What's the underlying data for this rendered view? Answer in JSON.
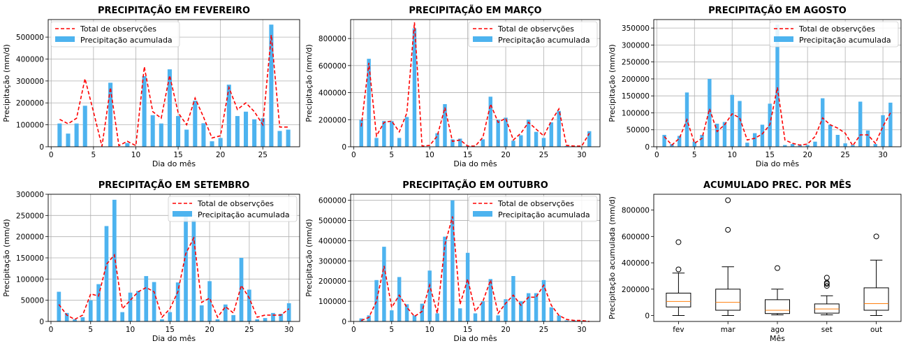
{
  "colors": {
    "bar": "#4db3ef",
    "line": "#ff0000",
    "grid": "#b0b0b0",
    "median": "#ff7f0e"
  },
  "chart_data": [
    {
      "type": "bar",
      "title": "PRECIPITAÇÃO EM FEVEREIRO",
      "xlabel": "Dia do mês",
      "ylabel": "Precipitação (mm/d)",
      "xlim": [
        -0.35,
        29.35
      ],
      "ylim": [
        0,
        580000
      ],
      "xticks": [
        0,
        5,
        10,
        15,
        20,
        25
      ],
      "yticks": [
        0,
        100000,
        200000,
        300000,
        400000,
        500000
      ],
      "legend": "upper left",
      "series": [
        {
          "name": "Precipitação acumulada",
          "kind": "bar",
          "x": [
            1,
            2,
            3,
            4,
            5,
            6,
            7,
            8,
            9,
            10,
            11,
            12,
            13,
            14,
            15,
            16,
            17,
            18,
            19,
            20,
            21,
            22,
            23,
            24,
            25,
            26,
            27,
            28
          ],
          "values": [
            106000,
            60000,
            106000,
            187000,
            0,
            0,
            292000,
            0,
            17000,
            0,
            322000,
            144000,
            106000,
            353000,
            140000,
            78000,
            210000,
            107000,
            25000,
            40000,
            283000,
            140000,
            160000,
            125000,
            130000,
            557000,
            72000,
            78000
          ]
        },
        {
          "name": "Total de observções",
          "kind": "line",
          "x": [
            1,
            2,
            3,
            4,
            5,
            6,
            7,
            8,
            9,
            10,
            11,
            12,
            13,
            14,
            15,
            16,
            17,
            18,
            19,
            20,
            21,
            22,
            23,
            24,
            25,
            26,
            27,
            28
          ],
          "values": [
            125000,
            105000,
            130000,
            310000,
            160000,
            2000,
            270000,
            5000,
            25000,
            5000,
            365000,
            160000,
            130000,
            325000,
            155000,
            100000,
            222000,
            135000,
            40000,
            50000,
            270000,
            170000,
            200000,
            160000,
            100000,
            510000,
            90000,
            90000
          ]
        }
      ]
    },
    {
      "type": "bar",
      "title": "PRECIPITAÇÃO EM MARÇO",
      "xlabel": "Dia do mês",
      "ylabel": "Precipitação (mm/d)",
      "xlim": [
        -0.4,
        32.4
      ],
      "ylim": [
        0,
        940000
      ],
      "xticks": [
        0,
        5,
        10,
        15,
        20,
        25,
        30
      ],
      "yticks": [
        0,
        200000,
        400000,
        600000,
        800000
      ],
      "legend": "upper right",
      "series": [
        {
          "name": "Precipitação acumulada",
          "kind": "bar",
          "x": [
            1,
            2,
            3,
            4,
            5,
            6,
            7,
            8,
            9,
            10,
            11,
            12,
            13,
            14,
            15,
            16,
            17,
            18,
            19,
            20,
            21,
            22,
            23,
            24,
            25,
            26,
            27,
            28,
            29,
            30,
            31
          ],
          "values": [
            200000,
            650000,
            65000,
            190000,
            190000,
            65000,
            220000,
            875000,
            0,
            0,
            100000,
            315000,
            55000,
            60000,
            5000,
            0,
            55000,
            370000,
            200000,
            215000,
            45000,
            85000,
            200000,
            110000,
            65000,
            180000,
            265000,
            5000,
            0,
            0,
            115000
          ]
        },
        {
          "name": "Total de observções",
          "kind": "line",
          "x": [
            1,
            2,
            3,
            4,
            5,
            6,
            7,
            8,
            9,
            10,
            11,
            12,
            13,
            14,
            15,
            16,
            17,
            18,
            19,
            20,
            21,
            22,
            23,
            24,
            25,
            26,
            27,
            28,
            29,
            30,
            31
          ],
          "values": [
            150000,
            620000,
            80000,
            180000,
            190000,
            110000,
            250000,
            920000,
            5000,
            10000,
            80000,
            290000,
            40000,
            50000,
            5000,
            5000,
            70000,
            315000,
            180000,
            210000,
            50000,
            100000,
            180000,
            130000,
            80000,
            190000,
            280000,
            10000,
            5000,
            5000,
            100000
          ]
        }
      ]
    },
    {
      "type": "bar",
      "title": "PRECIPITAÇÃO EM AGOSTO",
      "xlabel": "Dia do mês",
      "ylabel": "Precipitação (mm/d)",
      "xlim": [
        -0.4,
        32.4
      ],
      "ylim": [
        0,
        375000
      ],
      "xticks": [
        0,
        5,
        10,
        15,
        20,
        25,
        30
      ],
      "yticks": [
        0,
        50000,
        100000,
        150000,
        200000,
        250000,
        300000,
        350000
      ],
      "legend": "upper right",
      "series": [
        {
          "name": "Precipitação acumulada",
          "kind": "bar",
          "x": [
            1,
            2,
            3,
            4,
            5,
            6,
            7,
            8,
            9,
            10,
            11,
            12,
            13,
            14,
            15,
            16,
            17,
            18,
            19,
            20,
            21,
            22,
            23,
            24,
            25,
            26,
            27,
            28,
            29,
            30,
            31
          ],
          "values": [
            35000,
            8000,
            32000,
            160000,
            15000,
            35000,
            200000,
            68000,
            73000,
            153000,
            135000,
            12000,
            40000,
            65000,
            127000,
            360000,
            5000,
            8000,
            5000,
            5000,
            15000,
            143000,
            65000,
            35000,
            10000,
            5000,
            133000,
            48000,
            8000,
            93000,
            130000
          ]
        },
        {
          "name": "Total de observções",
          "kind": "line",
          "x": [
            1,
            2,
            3,
            4,
            5,
            6,
            7,
            8,
            9,
            10,
            11,
            12,
            13,
            14,
            15,
            16,
            17,
            18,
            19,
            20,
            21,
            22,
            23,
            24,
            25,
            26,
            27,
            28,
            29,
            30,
            31
          ],
          "values": [
            30000,
            5000,
            25000,
            80000,
            10000,
            25000,
            112000,
            45000,
            65000,
            97000,
            85000,
            20000,
            25000,
            38000,
            65000,
            175000,
            20000,
            10000,
            5000,
            8000,
            30000,
            85000,
            65000,
            55000,
            40000,
            3000,
            35000,
            35000,
            10000,
            60000,
            100000
          ]
        }
      ]
    },
    {
      "type": "bar",
      "title": "PRECIPITAÇÃO EM SETEMBRO",
      "xlabel": "Dia do mês",
      "ylabel": "Precipitação (mm/d)",
      "xlim": [
        -0.35,
        31.35
      ],
      "ylim": [
        0,
        300000
      ],
      "xticks": [
        0,
        5,
        10,
        15,
        20,
        25,
        30
      ],
      "yticks": [
        0,
        50000,
        100000,
        150000,
        200000,
        250000,
        300000
      ],
      "legend": "upper right",
      "series": [
        {
          "name": "Precipitação acumulada",
          "kind": "bar",
          "x": [
            1,
            2,
            3,
            4,
            5,
            6,
            7,
            8,
            9,
            10,
            11,
            12,
            13,
            14,
            15,
            16,
            17,
            18,
            19,
            20,
            21,
            22,
            23,
            24,
            25,
            26,
            27,
            28,
            29,
            30
          ],
          "values": [
            70000,
            20000,
            5000,
            10000,
            50000,
            88000,
            225000,
            287000,
            22000,
            68000,
            72000,
            107000,
            93000,
            5000,
            22000,
            92000,
            248000,
            240000,
            38000,
            95000,
            5000,
            40000,
            15000,
            150000,
            75000,
            5000,
            8000,
            20000,
            18000,
            43000
          ]
        },
        {
          "name": "Total de observções",
          "kind": "line",
          "x": [
            1,
            2,
            3,
            4,
            5,
            6,
            7,
            8,
            9,
            10,
            11,
            12,
            13,
            14,
            15,
            16,
            17,
            18,
            19,
            20,
            21,
            22,
            23,
            24,
            25,
            26,
            27,
            28,
            29,
            30
          ],
          "values": [
            40000,
            15000,
            5000,
            15000,
            65000,
            60000,
            135000,
            157000,
            30000,
            50000,
            70000,
            80000,
            70000,
            10000,
            30000,
            70000,
            160000,
            197000,
            45000,
            55000,
            10000,
            35000,
            20000,
            85000,
            55000,
            10000,
            15000,
            15000,
            15000,
            30000
          ]
        }
      ]
    },
    {
      "type": "bar",
      "title": "PRECIPITAÇÃO EM OUTUBRO",
      "xlabel": "Dia do mês",
      "ylabel": "Precipitação (mm/d)",
      "xlim": [
        -0.4,
        32.4
      ],
      "ylim": [
        0,
        630000
      ],
      "xticks": [
        0,
        5,
        10,
        15,
        20,
        25,
        30
      ],
      "yticks": [
        0,
        100000,
        200000,
        300000,
        400000,
        500000,
        600000
      ],
      "legend": "upper right",
      "series": [
        {
          "name": "Precipitação acumulada",
          "kind": "bar",
          "x": [
            1,
            2,
            3,
            4,
            5,
            6,
            7,
            8,
            9,
            10,
            11,
            12,
            13,
            14,
            15,
            16,
            17,
            18,
            19,
            20,
            21,
            22,
            23,
            24,
            25,
            26,
            27,
            28,
            29,
            30,
            31
          ],
          "values": [
            15000,
            30000,
            205000,
            370000,
            55000,
            220000,
            85000,
            30000,
            88000,
            252000,
            40000,
            420000,
            600000,
            65000,
            340000,
            40000,
            100000,
            210000,
            30000,
            110000,
            225000,
            100000,
            140000,
            140000,
            205000,
            70000,
            30000,
            5000,
            5000,
            0,
            0
          ]
        },
        {
          "name": "Total de observções",
          "kind": "line",
          "x": [
            1,
            2,
            3,
            4,
            5,
            6,
            7,
            8,
            9,
            10,
            11,
            12,
            13,
            14,
            15,
            16,
            17,
            18,
            19,
            20,
            21,
            22,
            23,
            24,
            25,
            26,
            27,
            28,
            29,
            30,
            31
          ],
          "values": [
            5000,
            20000,
            100000,
            275000,
            70000,
            130000,
            70000,
            25000,
            50000,
            180000,
            40000,
            380000,
            520000,
            85000,
            210000,
            50000,
            100000,
            205000,
            40000,
            90000,
            130000,
            80000,
            120000,
            120000,
            180000,
            80000,
            30000,
            10000,
            5000,
            5000,
            0
          ]
        }
      ]
    },
    {
      "type": "box",
      "title": "ACUMULADO PREC. POR MÊS",
      "xlabel": "Mês",
      "ylabel": "Precipitação acumulada (mm/d)",
      "ylim": [
        -45000,
        920000
      ],
      "yticks": [
        0,
        200000,
        400000,
        600000,
        800000
      ],
      "categories": [
        "fev",
        "mar",
        "ago",
        "set",
        "out"
      ],
      "boxes": [
        {
          "whislo": 0,
          "q1": 65000,
          "med": 107000,
          "q3": 170000,
          "whishi": 322000,
          "fliers": [
            350000,
            557000
          ]
        },
        {
          "whislo": 0,
          "q1": 40000,
          "med": 100000,
          "q3": 200000,
          "whishi": 370000,
          "fliers": [
            650000,
            875000
          ]
        },
        {
          "whislo": 5000,
          "q1": 15000,
          "med": 40000,
          "q3": 120000,
          "whishi": 200000,
          "fliers": [
            360000
          ]
        },
        {
          "whislo": 5000,
          "q1": 18000,
          "med": 50000,
          "q3": 88000,
          "whishi": 150000,
          "fliers": [
            225000,
            240000,
            248000,
            287000
          ]
        },
        {
          "whislo": 0,
          "q1": 40000,
          "med": 90000,
          "q3": 210000,
          "whishi": 420000,
          "fliers": [
            600000
          ]
        }
      ]
    }
  ]
}
